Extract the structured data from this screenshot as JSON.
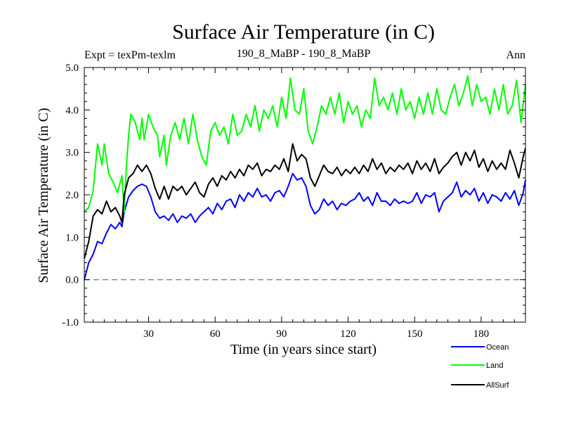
{
  "chart_data": {
    "type": "line",
    "title": "Surface Air Temperature (in C)",
    "subtitle_left": "Expt = texPm-texlm",
    "subtitle_center": "190_8_MaBP - 190_8_MaBP",
    "subtitle_right": "Ann",
    "xlabel": "Time (in years since start)",
    "ylabel": "Surface Air Temperature (in C)",
    "xlim": [
      1,
      200
    ],
    "ylim": [
      -1.0,
      5.0
    ],
    "x_ticks": [
      30,
      60,
      90,
      120,
      150,
      180
    ],
    "x_tick_labels": [
      "30",
      "60",
      "90",
      "120",
      "150",
      "180"
    ],
    "y_ticks": [
      -1.0,
      0.0,
      1.0,
      2.0,
      3.0,
      4.0,
      5.0
    ],
    "y_tick_labels": [
      "-1.0",
      "0.0",
      "1.0",
      "2.0",
      "3.0",
      "4.0",
      "5.0"
    ],
    "reference_line": {
      "y": 0.0,
      "style": "dashed",
      "color": "#888888"
    },
    "legend_placement": "bottom-right, outside plot",
    "series": [
      {
        "name": "Ocean",
        "color": "#0000ff",
        "points": [
          [
            1,
            0.0
          ],
          [
            3,
            0.4
          ],
          [
            5,
            0.6
          ],
          [
            7,
            0.9
          ],
          [
            9,
            0.85
          ],
          [
            11,
            1.1
          ],
          [
            13,
            1.3
          ],
          [
            15,
            1.2
          ],
          [
            17,
            1.35
          ],
          [
            18,
            1.25
          ],
          [
            19,
            1.6
          ],
          [
            21,
            1.95
          ],
          [
            23,
            2.1
          ],
          [
            25,
            2.2
          ],
          [
            27,
            2.25
          ],
          [
            29,
            2.2
          ],
          [
            31,
            1.95
          ],
          [
            33,
            1.6
          ],
          [
            35,
            1.45
          ],
          [
            37,
            1.5
          ],
          [
            39,
            1.4
          ],
          [
            41,
            1.55
          ],
          [
            43,
            1.35
          ],
          [
            45,
            1.5
          ],
          [
            47,
            1.45
          ],
          [
            49,
            1.55
          ],
          [
            51,
            1.35
          ],
          [
            53,
            1.5
          ],
          [
            55,
            1.6
          ],
          [
            57,
            1.7
          ],
          [
            59,
            1.55
          ],
          [
            61,
            1.8
          ],
          [
            63,
            1.65
          ],
          [
            65,
            1.85
          ],
          [
            67,
            1.9
          ],
          [
            69,
            1.7
          ],
          [
            71,
            2.0
          ],
          [
            73,
            1.85
          ],
          [
            75,
            2.05
          ],
          [
            77,
            1.95
          ],
          [
            79,
            2.15
          ],
          [
            81,
            1.95
          ],
          [
            83,
            2.0
          ],
          [
            85,
            1.85
          ],
          [
            87,
            2.05
          ],
          [
            89,
            2.1
          ],
          [
            91,
            1.95
          ],
          [
            93,
            2.2
          ],
          [
            95,
            2.5
          ],
          [
            97,
            2.35
          ],
          [
            99,
            2.4
          ],
          [
            101,
            2.2
          ],
          [
            103,
            1.75
          ],
          [
            105,
            1.55
          ],
          [
            107,
            1.65
          ],
          [
            109,
            1.9
          ],
          [
            111,
            1.75
          ],
          [
            113,
            1.85
          ],
          [
            115,
            1.65
          ],
          [
            117,
            1.8
          ],
          [
            119,
            1.75
          ],
          [
            121,
            1.85
          ],
          [
            123,
            1.9
          ],
          [
            125,
            2.05
          ],
          [
            127,
            1.85
          ],
          [
            129,
            1.95
          ],
          [
            131,
            1.75
          ],
          [
            133,
            2.05
          ],
          [
            135,
            1.85
          ],
          [
            137,
            1.85
          ],
          [
            139,
            1.75
          ],
          [
            141,
            1.9
          ],
          [
            143,
            1.8
          ],
          [
            145,
            1.85
          ],
          [
            147,
            1.8
          ],
          [
            149,
            1.85
          ],
          [
            151,
            2.05
          ],
          [
            153,
            1.8
          ],
          [
            155,
            2.0
          ],
          [
            157,
            1.95
          ],
          [
            159,
            2.05
          ],
          [
            161,
            1.6
          ],
          [
            163,
            1.85
          ],
          [
            165,
            1.95
          ],
          [
            167,
            2.05
          ],
          [
            169,
            2.3
          ],
          [
            171,
            1.95
          ],
          [
            173,
            2.1
          ],
          [
            175,
            2.0
          ],
          [
            177,
            2.15
          ],
          [
            179,
            1.85
          ],
          [
            181,
            2.05
          ],
          [
            183,
            1.8
          ],
          [
            185,
            2.0
          ],
          [
            187,
            1.95
          ],
          [
            189,
            1.85
          ],
          [
            191,
            2.05
          ],
          [
            193,
            1.9
          ],
          [
            195,
            2.1
          ],
          [
            197,
            1.75
          ],
          [
            199,
            2.05
          ],
          [
            200,
            2.35
          ]
        ]
      },
      {
        "name": "Land",
        "color": "#00ff00",
        "points": [
          [
            1,
            1.6
          ],
          [
            3,
            1.7
          ],
          [
            5,
            2.1
          ],
          [
            7,
            3.2
          ],
          [
            9,
            2.7
          ],
          [
            10,
            3.2
          ],
          [
            12,
            2.5
          ],
          [
            14,
            2.3
          ],
          [
            16,
            2.05
          ],
          [
            18,
            2.45
          ],
          [
            19,
            1.6
          ],
          [
            20,
            2.7
          ],
          [
            21,
            3.4
          ],
          [
            22,
            3.9
          ],
          [
            24,
            3.7
          ],
          [
            26,
            3.3
          ],
          [
            27,
            3.8
          ],
          [
            28,
            3.3
          ],
          [
            30,
            3.9
          ],
          [
            32,
            3.6
          ],
          [
            34,
            3.4
          ],
          [
            35,
            2.9
          ],
          [
            37,
            3.4
          ],
          [
            38,
            2.7
          ],
          [
            40,
            3.4
          ],
          [
            42,
            3.7
          ],
          [
            44,
            3.3
          ],
          [
            46,
            3.8
          ],
          [
            48,
            3.2
          ],
          [
            50,
            3.9
          ],
          [
            52,
            3.3
          ],
          [
            54,
            2.9
          ],
          [
            56,
            2.7
          ],
          [
            58,
            3.5
          ],
          [
            60,
            3.7
          ],
          [
            62,
            3.4
          ],
          [
            64,
            3.6
          ],
          [
            66,
            3.2
          ],
          [
            68,
            3.9
          ],
          [
            70,
            3.4
          ],
          [
            72,
            3.5
          ],
          [
            74,
            3.9
          ],
          [
            76,
            3.6
          ],
          [
            78,
            4.1
          ],
          [
            80,
            3.5
          ],
          [
            82,
            4.0
          ],
          [
            84,
            3.8
          ],
          [
            86,
            4.1
          ],
          [
            88,
            3.6
          ],
          [
            90,
            4.3
          ],
          [
            92,
            3.8
          ],
          [
            94,
            4.75
          ],
          [
            96,
            4.0
          ],
          [
            98,
            3.9
          ],
          [
            100,
            4.5
          ],
          [
            102,
            3.5
          ],
          [
            104,
            3.2
          ],
          [
            106,
            3.6
          ],
          [
            108,
            4.1
          ],
          [
            110,
            3.9
          ],
          [
            112,
            4.3
          ],
          [
            114,
            3.9
          ],
          [
            116,
            4.4
          ],
          [
            118,
            3.7
          ],
          [
            120,
            4.2
          ],
          [
            122,
            3.9
          ],
          [
            124,
            4.1
          ],
          [
            126,
            3.6
          ],
          [
            128,
            4.0
          ],
          [
            130,
            3.8
          ],
          [
            132,
            4.75
          ],
          [
            134,
            4.1
          ],
          [
            136,
            4.3
          ],
          [
            138,
            4.0
          ],
          [
            140,
            4.4
          ],
          [
            142,
            3.9
          ],
          [
            144,
            4.5
          ],
          [
            146,
            4.0
          ],
          [
            148,
            4.2
          ],
          [
            150,
            3.8
          ],
          [
            152,
            4.3
          ],
          [
            154,
            3.9
          ],
          [
            156,
            4.4
          ],
          [
            158,
            3.9
          ],
          [
            160,
            4.5
          ],
          [
            162,
            4.0
          ],
          [
            164,
            3.9
          ],
          [
            166,
            4.3
          ],
          [
            168,
            4.6
          ],
          [
            170,
            4.1
          ],
          [
            172,
            4.4
          ],
          [
            174,
            4.8
          ],
          [
            176,
            4.1
          ],
          [
            178,
            4.6
          ],
          [
            180,
            4.2
          ],
          [
            182,
            4.3
          ],
          [
            184,
            3.9
          ],
          [
            186,
            4.5
          ],
          [
            188,
            4.0
          ],
          [
            190,
            4.6
          ],
          [
            192,
            3.9
          ],
          [
            194,
            4.1
          ],
          [
            196,
            4.7
          ],
          [
            198,
            3.7
          ],
          [
            200,
            4.6
          ]
        ]
      },
      {
        "name": "AllSurf",
        "color": "#000000",
        "points": [
          [
            1,
            0.5
          ],
          [
            3,
            0.9
          ],
          [
            5,
            1.5
          ],
          [
            7,
            1.65
          ],
          [
            9,
            1.55
          ],
          [
            11,
            1.85
          ],
          [
            13,
            1.6
          ],
          [
            15,
            1.7
          ],
          [
            17,
            1.5
          ],
          [
            18,
            1.35
          ],
          [
            19,
            2.0
          ],
          [
            21,
            2.4
          ],
          [
            23,
            2.5
          ],
          [
            25,
            2.7
          ],
          [
            27,
            2.55
          ],
          [
            29,
            2.7
          ],
          [
            31,
            2.5
          ],
          [
            33,
            2.15
          ],
          [
            35,
            1.9
          ],
          [
            37,
            2.2
          ],
          [
            39,
            1.9
          ],
          [
            41,
            2.2
          ],
          [
            43,
            2.1
          ],
          [
            45,
            2.2
          ],
          [
            47,
            2.0
          ],
          [
            49,
            2.15
          ],
          [
            51,
            2.3
          ],
          [
            53,
            2.05
          ],
          [
            55,
            1.95
          ],
          [
            57,
            2.25
          ],
          [
            59,
            2.4
          ],
          [
            61,
            2.2
          ],
          [
            63,
            2.45
          ],
          [
            65,
            2.35
          ],
          [
            67,
            2.55
          ],
          [
            69,
            2.4
          ],
          [
            71,
            2.6
          ],
          [
            73,
            2.45
          ],
          [
            75,
            2.7
          ],
          [
            77,
            2.6
          ],
          [
            79,
            2.75
          ],
          [
            81,
            2.45
          ],
          [
            83,
            2.6
          ],
          [
            85,
            2.55
          ],
          [
            87,
            2.7
          ],
          [
            89,
            2.6
          ],
          [
            91,
            2.85
          ],
          [
            93,
            2.55
          ],
          [
            95,
            3.2
          ],
          [
            97,
            2.8
          ],
          [
            99,
            2.95
          ],
          [
            101,
            2.85
          ],
          [
            103,
            2.4
          ],
          [
            105,
            2.2
          ],
          [
            107,
            2.45
          ],
          [
            109,
            2.7
          ],
          [
            111,
            2.55
          ],
          [
            113,
            2.5
          ],
          [
            115,
            2.65
          ],
          [
            117,
            2.45
          ],
          [
            119,
            2.6
          ],
          [
            121,
            2.5
          ],
          [
            123,
            2.65
          ],
          [
            125,
            2.5
          ],
          [
            127,
            2.7
          ],
          [
            129,
            2.55
          ],
          [
            131,
            2.85
          ],
          [
            133,
            2.6
          ],
          [
            135,
            2.75
          ],
          [
            137,
            2.5
          ],
          [
            139,
            2.65
          ],
          [
            141,
            2.55
          ],
          [
            143,
            2.7
          ],
          [
            145,
            2.6
          ],
          [
            147,
            2.75
          ],
          [
            149,
            2.5
          ],
          [
            151,
            2.8
          ],
          [
            153,
            2.6
          ],
          [
            155,
            2.75
          ],
          [
            157,
            2.55
          ],
          [
            159,
            2.85
          ],
          [
            161,
            2.5
          ],
          [
            163,
            2.65
          ],
          [
            165,
            2.75
          ],
          [
            167,
            2.9
          ],
          [
            169,
            3.0
          ],
          [
            171,
            2.7
          ],
          [
            173,
            3.0
          ],
          [
            175,
            2.8
          ],
          [
            177,
            3.05
          ],
          [
            179,
            2.65
          ],
          [
            181,
            2.85
          ],
          [
            183,
            2.55
          ],
          [
            185,
            2.8
          ],
          [
            187,
            2.6
          ],
          [
            189,
            2.75
          ],
          [
            191,
            2.6
          ],
          [
            193,
            3.05
          ],
          [
            195,
            2.75
          ],
          [
            197,
            2.4
          ],
          [
            199,
            2.9
          ],
          [
            200,
            3.1
          ]
        ]
      }
    ]
  }
}
